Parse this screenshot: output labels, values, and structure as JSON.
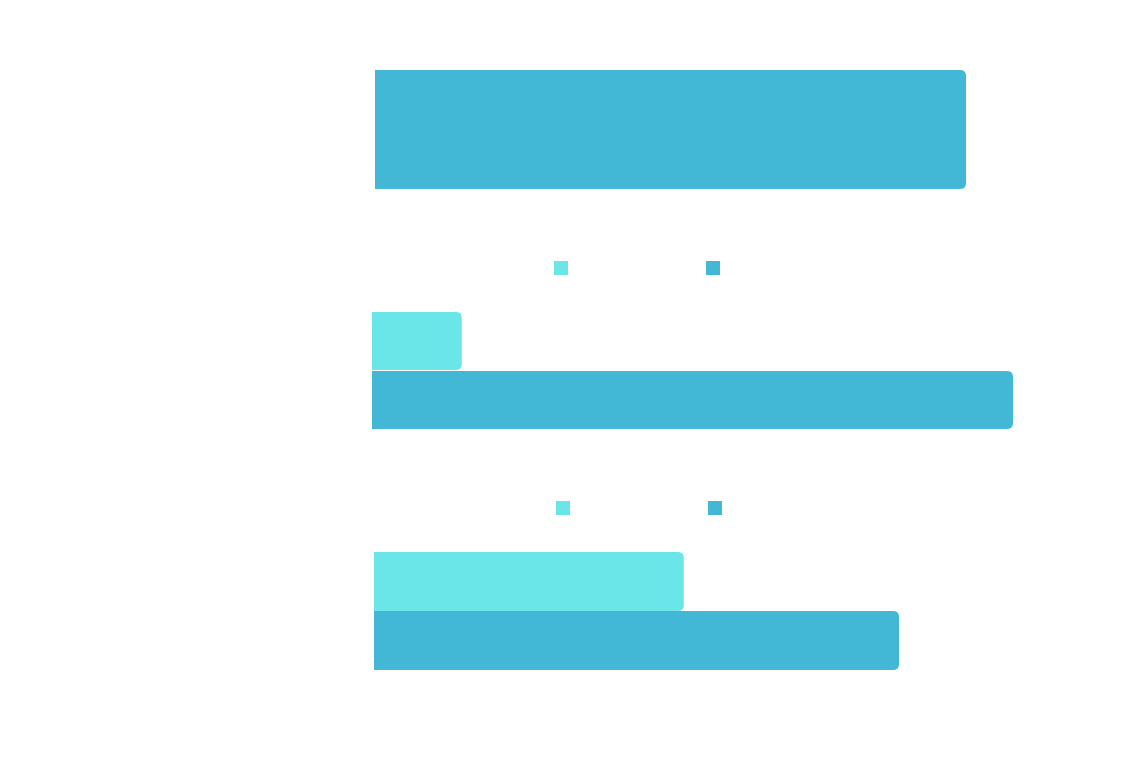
{
  "chart_data": [
    {
      "type": "bar",
      "orientation": "horizontal",
      "series": [
        {
          "values": [
            100
          ]
        }
      ],
      "xlim": [
        0,
        100
      ],
      "legend": "none",
      "grid": false
    },
    {
      "type": "bar",
      "orientation": "horizontal",
      "series": [
        {
          "values": [
            14
          ]
        },
        {
          "values": [
            100
          ]
        }
      ],
      "xlim": [
        0,
        100
      ],
      "legend": "top-center",
      "grid": false
    },
    {
      "type": "bar",
      "orientation": "horizontal",
      "series": [
        {
          "values": [
            59
          ]
        },
        {
          "values": [
            100
          ]
        }
      ],
      "xlim": [
        0,
        100
      ],
      "legend": "top-center",
      "grid": false
    }
  ],
  "colors": {
    "series_light": "#6ae5e8",
    "series_dark": "#42b8d6",
    "background": "#ffffff"
  }
}
